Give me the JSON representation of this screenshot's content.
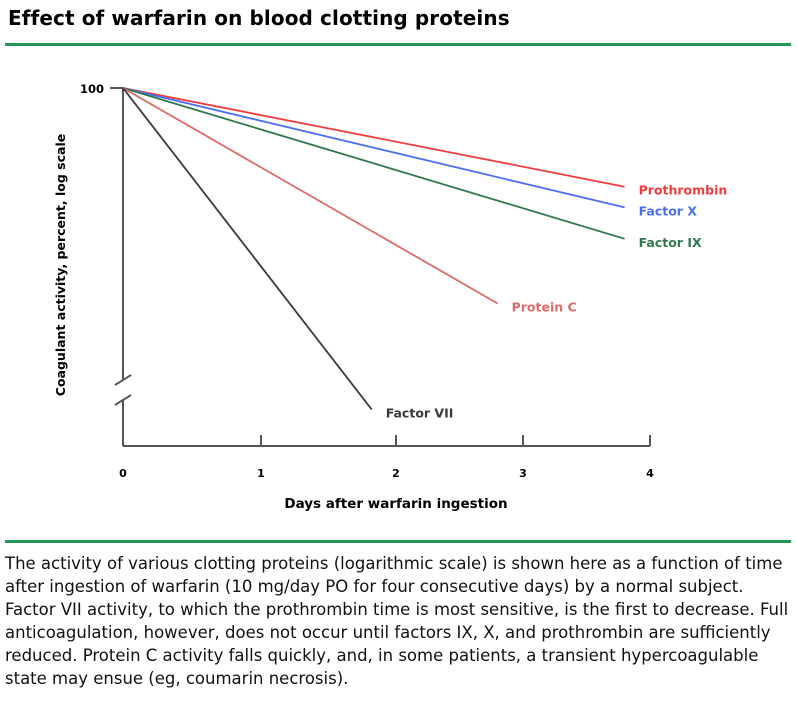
{
  "title": "Effect of warfarin on blood clotting proteins",
  "caption": "The activity of various clotting proteins (logarithmic scale) is shown here as a function of time after ingestion of warfarin (10 mg/day PO for four consecutive days) by a normal subject. Factor VII activity, to which the prothrombin time is most sensitive, is the first to decrease. Full anticoagulation, however, does not occur until factors IX, X, and prothrombin are sufficiently reduced. Protein C activity falls quickly, and, in some patients, a transient hypercoagulable state may ensue (eg, coumarin necrosis).",
  "colors": {
    "rule": "#1f9a56",
    "prothrombin": "#f03c3c",
    "factor_x": "#4a6ef0",
    "factor_ix": "#2e7a4e",
    "protein_c": "#de6a6a",
    "factor_vii": "#3a3a3a"
  },
  "chart_data": {
    "type": "line",
    "title": "Effect of warfarin on blood clotting proteins",
    "xlabel": "Days after warfarin ingestion",
    "ylabel": "Coagulant activity, percent, log scale",
    "x_ticks": [
      "0",
      "1",
      "2",
      "3",
      "4"
    ],
    "y_ticks": [
      "100"
    ],
    "xlim": [
      0,
      4
    ],
    "y_scale": "log",
    "y_axis_break": true,
    "grid": false,
    "legend": "inline labels at line ends",
    "series": [
      {
        "name": "Prothrombin",
        "color": "#f03c3c",
        "x": [
          0,
          3.8
        ],
        "y": [
          100,
          61
        ]
      },
      {
        "name": "Factor X",
        "color": "#4a6ef0",
        "x": [
          0,
          3.8
        ],
        "y": [
          100,
          55
        ]
      },
      {
        "name": "Factor IX",
        "color": "#2e7a4e",
        "x": [
          0,
          3.8
        ],
        "y": [
          100,
          47
        ]
      },
      {
        "name": "Protein C",
        "color": "#de6a6a",
        "x": [
          0,
          2.8
        ],
        "y": [
          100,
          34
        ]
      },
      {
        "name": "Factor VII",
        "color": "#3a3a3a",
        "x": [
          0,
          1.82
        ],
        "y": [
          100,
          20
        ]
      }
    ]
  }
}
